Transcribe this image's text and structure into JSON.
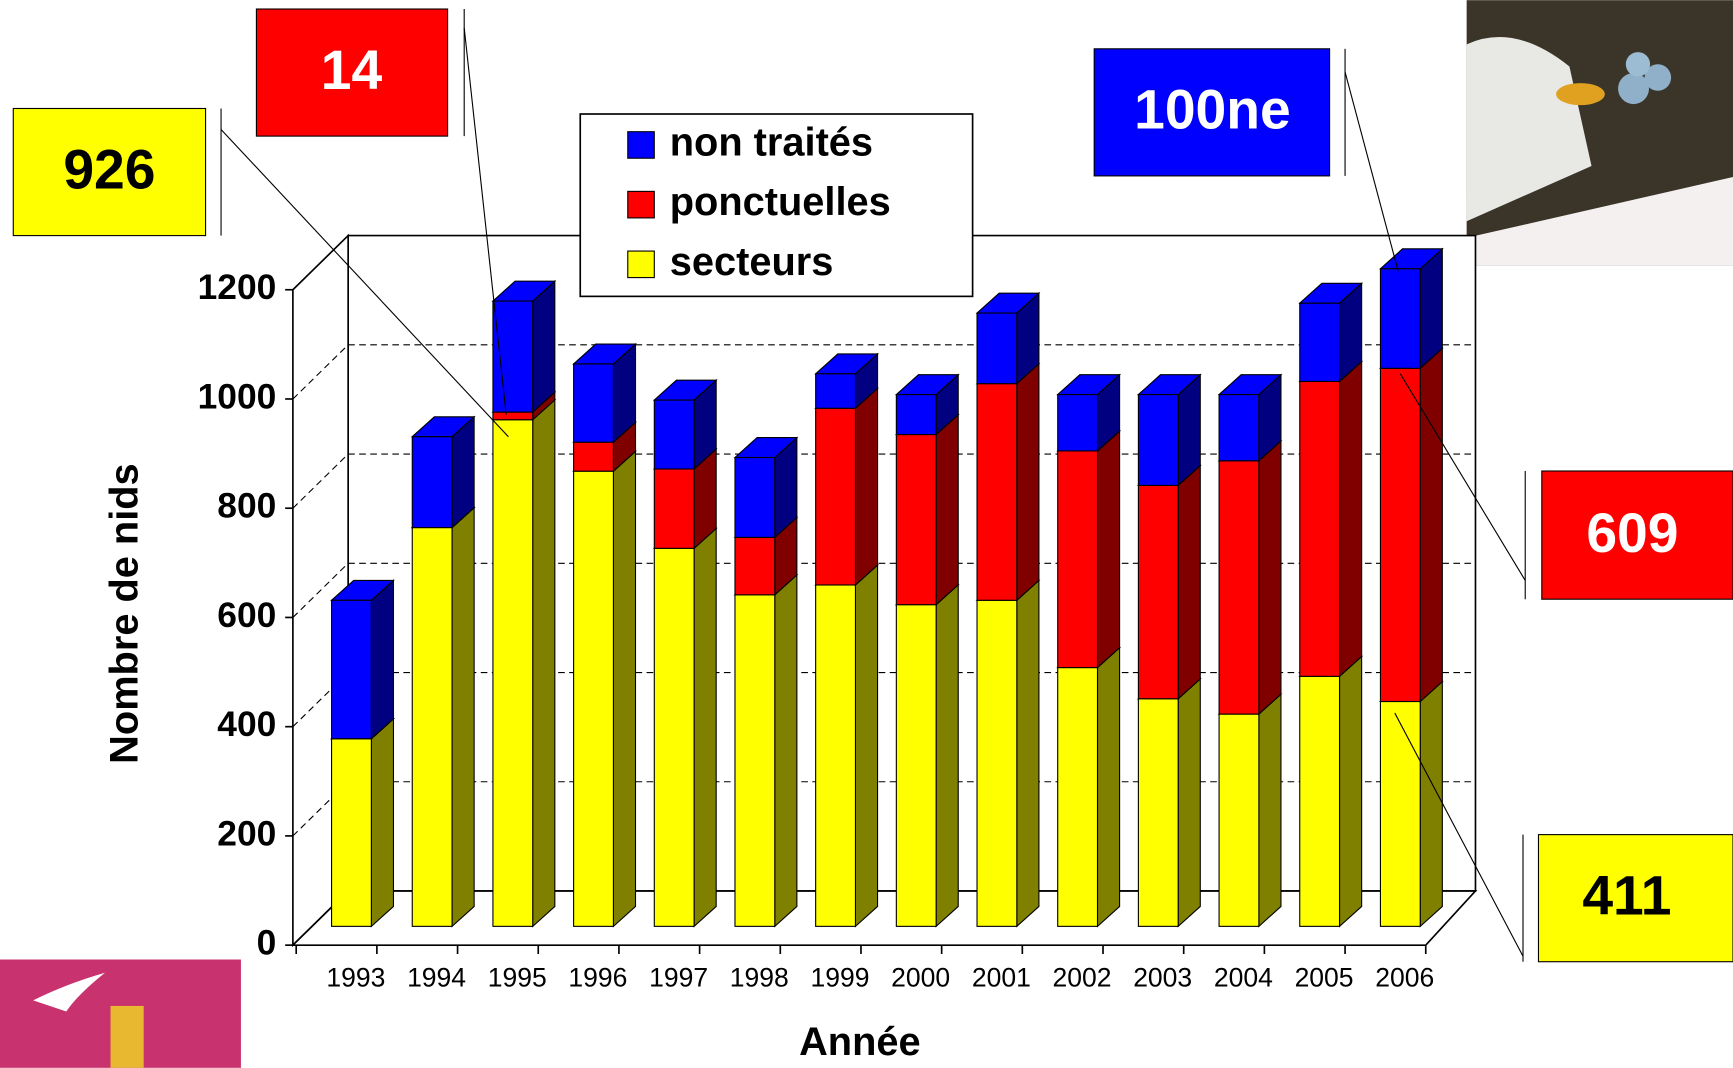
{
  "chart_data": {
    "type": "bar3d-stacked",
    "x_label": "Année",
    "y_label": "Nombre de nids",
    "categories": [
      "1993",
      "1994",
      "1995",
      "1996",
      "1997",
      "1998",
      "1999",
      "2000",
      "2001",
      "2002",
      "2003",
      "2004",
      "2005",
      "2006"
    ],
    "series": [
      {
        "name": "non traités",
        "color": "#0000ff",
        "side_color": "#000080",
        "values": [
          253,
          166,
          203,
          143,
          126,
          146,
          63,
          73,
          129,
          103,
          166,
          121,
          143,
          182
        ]
      },
      {
        "name": "ponctuelles",
        "color": "#ff0000",
        "side_color": "#800000",
        "values": [
          0,
          0,
          14,
          53,
          145,
          105,
          323,
          311,
          396,
          396,
          390,
          463,
          539,
          609
        ]
      },
      {
        "name": "secteurs",
        "color": "#ffff00",
        "side_color": "#808000",
        "values": [
          343,
          729,
          926,
          832,
          691,
          606,
          624,
          588,
          596,
          473,
          416,
          388,
          457,
          411
        ]
      }
    ],
    "ylim": [
      0,
      1200
    ],
    "yticks": [
      0,
      200,
      400,
      600,
      800,
      1000,
      1200
    ],
    "grid": true,
    "annotations": [
      {
        "text": "100ne"
      }
    ]
  }
}
